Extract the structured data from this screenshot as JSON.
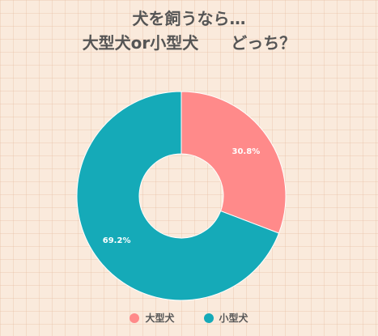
{
  "chart_data": {
    "type": "pie",
    "variant": "donut",
    "title_lines": [
      "犬を飼うなら…",
      "大型犬or小型犬　　どっち？"
    ],
    "categories": [
      "大型犬",
      "小型犬"
    ],
    "values": [
      30.8,
      69.2
    ],
    "labels": [
      "30.8%",
      "69.2%"
    ],
    "colors": [
      "#ff8a8a",
      "#15aab8"
    ],
    "legend_position": "bottom"
  }
}
